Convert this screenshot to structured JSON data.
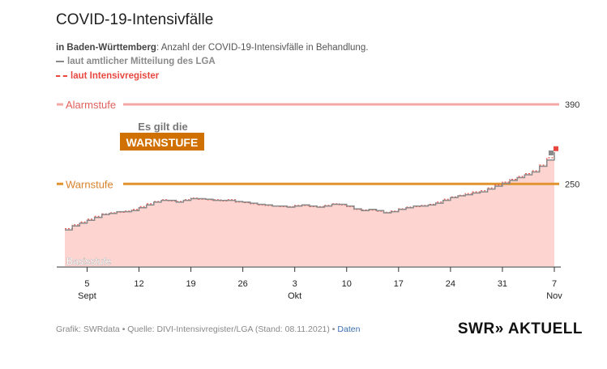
{
  "title": "COVID-19-Intensivfälle",
  "subtitle": {
    "region": "in Baden-Württemberg",
    "text": ": Anzahl der COVID-19-Intensivfälle in Behandlung."
  },
  "legend": {
    "lga": "laut amtlicher Mitteilung des LGA",
    "register": "laut Intensivregister"
  },
  "colors": {
    "lga_line": "#8a8a8a",
    "register_line": "#e8483f",
    "area_fill": "#fdd4d0",
    "alarm_line": "#f4a8a4",
    "alarm_text": "#e0625b",
    "warn_line": "#e0932f",
    "warn_text": "#d9822b",
    "badge_bg": "#d07000"
  },
  "footer": {
    "source": "Grafik: SWRdata • Quelle: DIVI-Intensivregister/LGA (Stand: 08.11.2021) • ",
    "link": "Daten"
  },
  "brand": "SWR» AKTUELL",
  "chart_data": {
    "type": "area",
    "x_start": "2021-09-02",
    "x_end": "2021-11-07",
    "ylim": [
      105,
      400
    ],
    "thresholds": [
      {
        "name": "Alarmstufe",
        "value": 390
      },
      {
        "name": "Warnstufe",
        "value": 250
      }
    ],
    "base_label": "Basisstufe",
    "status_label": "Es gilt die",
    "status_value": "WARNSTUFE",
    "x_ticks": [
      {
        "day": "5",
        "month": "Sept"
      },
      {
        "day": "12",
        "month": ""
      },
      {
        "day": "19",
        "month": ""
      },
      {
        "day": "26",
        "month": ""
      },
      {
        "day": "3",
        "month": "Okt"
      },
      {
        "day": "10",
        "month": ""
      },
      {
        "day": "17",
        "month": ""
      },
      {
        "day": "24",
        "month": ""
      },
      {
        "day": "31",
        "month": ""
      },
      {
        "day": "7",
        "month": "Nov"
      }
    ],
    "series": [
      {
        "name": "laut amtlicher Mitteilung des LGA",
        "style": "solid",
        "x": [
          "2021-09-02",
          "2021-09-03",
          "2021-09-04",
          "2021-09-05",
          "2021-09-06",
          "2021-09-07",
          "2021-09-08",
          "2021-09-09",
          "2021-09-10",
          "2021-09-11",
          "2021-09-12",
          "2021-09-13",
          "2021-09-14",
          "2021-09-15",
          "2021-09-16",
          "2021-09-17",
          "2021-09-18",
          "2021-09-19",
          "2021-09-20",
          "2021-09-21",
          "2021-09-22",
          "2021-09-23",
          "2021-09-24",
          "2021-09-25",
          "2021-09-26",
          "2021-09-27",
          "2021-09-28",
          "2021-09-29",
          "2021-09-30",
          "2021-10-01",
          "2021-10-02",
          "2021-10-03",
          "2021-10-04",
          "2021-10-05",
          "2021-10-06",
          "2021-10-07",
          "2021-10-08",
          "2021-10-09",
          "2021-10-10",
          "2021-10-11",
          "2021-10-12",
          "2021-10-13",
          "2021-10-14",
          "2021-10-15",
          "2021-10-16",
          "2021-10-17",
          "2021-10-18",
          "2021-10-19",
          "2021-10-20",
          "2021-10-21",
          "2021-10-22",
          "2021-10-23",
          "2021-10-24",
          "2021-10-25",
          "2021-10-26",
          "2021-10-27",
          "2021-10-28",
          "2021-10-29",
          "2021-10-30",
          "2021-10-31",
          "2021-11-01",
          "2021-11-02",
          "2021-11-03",
          "2021-11-04",
          "2021-11-05",
          "2021-11-06",
          "2021-11-07"
        ],
        "values": [
          169,
          176,
          181,
          186,
          191,
          196,
          198,
          201,
          201,
          203,
          208,
          213,
          218,
          221,
          221,
          218,
          221,
          224,
          224,
          223,
          221,
          221,
          221,
          219,
          218,
          216,
          214,
          213,
          211,
          211,
          209,
          211,
          213,
          211,
          209,
          211,
          214,
          214,
          211,
          206,
          203,
          205,
          203,
          199,
          201,
          205,
          208,
          211,
          211,
          213,
          216,
          221,
          226,
          229,
          231,
          234,
          236,
          241,
          246,
          251,
          256,
          261,
          266,
          271,
          281,
          292,
          306
        ]
      },
      {
        "name": "laut Intensivregister",
        "style": "dashed",
        "x": [
          "2021-09-02",
          "2021-09-03",
          "2021-09-04",
          "2021-09-05",
          "2021-09-06",
          "2021-09-07",
          "2021-09-08",
          "2021-09-09",
          "2021-09-10",
          "2021-09-11",
          "2021-09-12",
          "2021-09-13",
          "2021-09-14",
          "2021-09-15",
          "2021-09-16",
          "2021-09-17",
          "2021-09-18",
          "2021-09-19",
          "2021-09-20",
          "2021-09-21",
          "2021-09-22",
          "2021-09-23",
          "2021-09-24",
          "2021-09-25",
          "2021-09-26",
          "2021-09-27",
          "2021-09-28",
          "2021-09-29",
          "2021-09-30",
          "2021-10-01",
          "2021-10-02",
          "2021-10-03",
          "2021-10-04",
          "2021-10-05",
          "2021-10-06",
          "2021-10-07",
          "2021-10-08",
          "2021-10-09",
          "2021-10-10",
          "2021-10-11",
          "2021-10-12",
          "2021-10-13",
          "2021-10-14",
          "2021-10-15",
          "2021-10-16",
          "2021-10-17",
          "2021-10-18",
          "2021-10-19",
          "2021-10-20",
          "2021-10-21",
          "2021-10-22",
          "2021-10-23",
          "2021-10-24",
          "2021-10-25",
          "2021-10-26",
          "2021-10-27",
          "2021-10-28",
          "2021-10-29",
          "2021-10-30",
          "2021-10-31",
          "2021-11-01",
          "2021-11-02",
          "2021-11-03",
          "2021-11-04",
          "2021-11-05",
          "2021-11-06",
          "2021-11-07"
        ],
        "values": [
          171,
          178,
          183,
          188,
          193,
          197,
          199,
          200,
          202,
          205,
          210,
          215,
          219,
          222,
          220,
          219,
          222,
          225,
          223,
          222,
          222,
          220,
          222,
          218,
          217,
          215,
          213,
          212,
          211,
          210,
          210,
          212,
          212,
          210,
          210,
          212,
          215,
          213,
          210,
          205,
          204,
          204,
          202,
          200,
          202,
          206,
          209,
          210,
          212,
          214,
          218,
          223,
          227,
          230,
          233,
          236,
          238,
          243,
          248,
          253,
          258,
          263,
          268,
          273,
          283,
          296,
          312
        ]
      }
    ]
  }
}
